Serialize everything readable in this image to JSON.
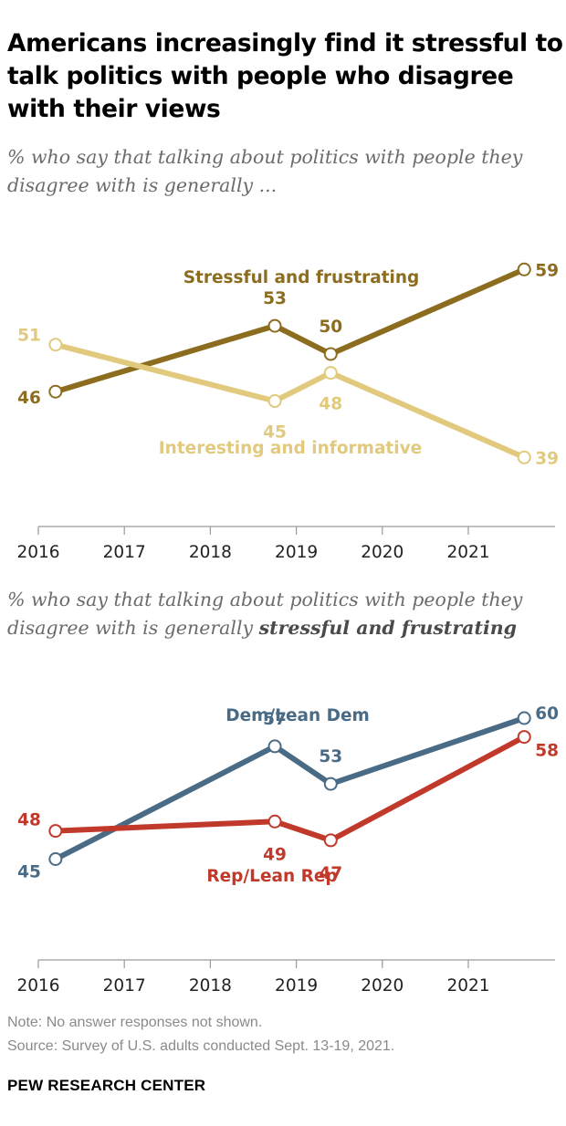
{
  "title": "Americans increasingly find it stressful to talk politics with people who disagree with their views",
  "subtitle_1": "% who say that talking about politics with people they disagree with is generally ...",
  "subtitle_2_prefix": "% who say that talking about politics with people they disagree with is generally ",
  "subtitle_2_emphasis": "stressful and frustrating",
  "note": "Note: No answer responses not shown.",
  "source": "Source: Survey of U.S. adults conducted Sept. 13-19, 2021.",
  "brand": "PEW RESEARCH CENTER",
  "chart_data": [
    {
      "type": "line",
      "x_ticks": [
        "2016",
        "2017",
        "2018",
        "2019",
        "2020",
        "2021"
      ],
      "xlim": [
        2016,
        2022
      ],
      "ylim": [
        30,
        70
      ],
      "series": [
        {
          "name": "Stressful and frustrating",
          "color": "#8c6d1f",
          "x": [
            2016.2,
            2018.75,
            2019.4,
            2021.65
          ],
          "values": [
            46,
            53,
            50,
            59
          ],
          "labels": [
            "46",
            "53",
            "50",
            "59"
          ]
        },
        {
          "name": "Interesting and informative",
          "color": "#e1c97d",
          "x": [
            2016.2,
            2018.75,
            2019.4,
            2021.65
          ],
          "values": [
            51,
            45,
            48,
            39
          ],
          "labels": [
            "51",
            "45",
            "48",
            "39"
          ]
        }
      ]
    },
    {
      "type": "line",
      "x_ticks": [
        "2016",
        "2017",
        "2018",
        "2019",
        "2020",
        "2021"
      ],
      "xlim": [
        2016,
        2022
      ],
      "ylim": [
        30,
        70
      ],
      "series": [
        {
          "name": "Dem/Lean Dem",
          "color": "#4a6b85",
          "x": [
            2016.2,
            2018.75,
            2019.4,
            2021.65
          ],
          "values": [
            45,
            57,
            53,
            60
          ],
          "labels": [
            "45",
            "57",
            "53",
            "60"
          ]
        },
        {
          "name": "Rep/Lean Rep",
          "color": "#c0392b",
          "x": [
            2016.2,
            2018.75,
            2019.4,
            2021.65
          ],
          "values": [
            48,
            49,
            47,
            58
          ],
          "labels": [
            "48",
            "49",
            "47",
            "58"
          ]
        }
      ]
    }
  ]
}
